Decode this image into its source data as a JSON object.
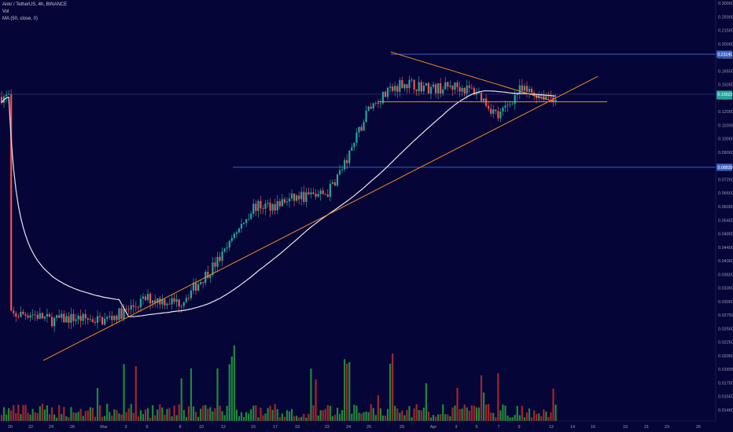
{
  "header": {
    "symbol_line": "Ankr / TetherUS, 4h, BINANCE",
    "volume_label": "Vol",
    "ma_label": "MA (50, close, 0)"
  },
  "colors": {
    "background": "#050537",
    "up": "#26a69a",
    "down": "#ef5350",
    "vol_up": "#1e8a3a",
    "vol_down": "#a3262a",
    "ma": "#e6e6ee",
    "trendline": "#f08a24",
    "hline": "#4a6fd1",
    "last_price_tag": "#26a69a",
    "level_tag": "#3f67c9"
  },
  "chart_data": {
    "type": "candlestick",
    "title": "Ankr / TetherUS, 4h, BINANCE",
    "x_tick_labels": [
      "20",
      "22",
      "24",
      "26",
      "Mar",
      "3",
      "5",
      "8",
      "10",
      "12",
      "15",
      "17",
      "19",
      "22",
      "24",
      "26",
      "29",
      "Apr",
      "3",
      "5",
      "7",
      "9",
      "12",
      "14",
      "16",
      "19",
      "21",
      "23",
      "26"
    ],
    "y_tick_labels": [
      "0.300000",
      "0.250000",
      "0.215000",
      "0.200000",
      "0.180000",
      "0.165000",
      "0.150000",
      "0.135000",
      "0.120000",
      "0.110000",
      "0.100000",
      "0.090000",
      "0.080000",
      "0.072000",
      "0.066000",
      "0.060000",
      "0.054000",
      "0.048000",
      "0.044000",
      "0.040000",
      "0.036000",
      "0.033000",
      "0.030000",
      "0.027500",
      "0.025000",
      "0.022500",
      "0.020500",
      "0.018950",
      "0.017000",
      "0.015500",
      "0.014000"
    ],
    "y_scale": "log",
    "ylim": [
      0.0135,
      0.31
    ],
    "price_path": [
      [
        "20",
        0.028
      ],
      [
        "22",
        0.0285
      ],
      [
        "24",
        0.027
      ],
      [
        "26",
        0.0275
      ],
      [
        "Mar",
        0.027
      ],
      [
        "3",
        0.029
      ],
      [
        "5",
        0.032
      ],
      [
        "8",
        0.031
      ],
      [
        "10",
        0.037
      ],
      [
        "12",
        0.045
      ],
      [
        "15",
        0.065
      ],
      [
        "17",
        0.066
      ],
      [
        "19",
        0.07
      ],
      [
        "22",
        0.072
      ],
      [
        "24",
        0.095
      ],
      [
        "26",
        0.14
      ],
      [
        "29",
        0.17
      ],
      [
        "Apr",
        0.162
      ],
      [
        "3",
        0.165
      ],
      [
        "5",
        0.158
      ],
      [
        "7",
        0.13
      ],
      [
        "9",
        0.16
      ],
      [
        "12",
        0.152
      ]
    ],
    "ma_period": 50,
    "trendlines": [
      {
        "from": [
          "22",
          0.0198
        ],
        "to": [
          "16",
          0.178
        ]
      },
      {
        "from": [
          "28",
          0.215
        ],
        "to": [
          "12",
          0.147
        ]
      }
    ],
    "horizontal_levels": [
      0.2114,
      0.1463,
      0.0882
    ],
    "price_tags": [
      {
        "value_label": "0.211411",
        "kind": "level"
      },
      {
        "value_label": "0.155224",
        "kind": "last"
      },
      {
        "value_label": "0.088307",
        "kind": "level"
      }
    ],
    "grid": false,
    "legend": "top-left"
  }
}
